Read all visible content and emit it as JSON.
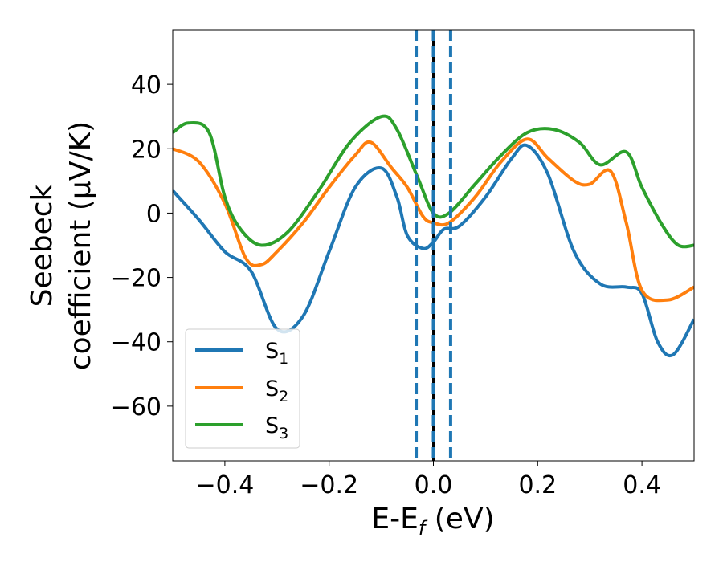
{
  "chart_data": {
    "type": "line",
    "title": "",
    "xlabel_main": "E-E",
    "xlabel_sub": "f",
    "xlabel_tail": " (eV)",
    "ylabel_line1": "Seebeck",
    "ylabel_line2": "coefficient  (μV/K)",
    "xlim": [
      -0.5,
      0.5
    ],
    "ylim": [
      -77,
      57
    ],
    "xticks": [
      -0.4,
      -0.2,
      0.0,
      0.2,
      0.4
    ],
    "xtick_labels": [
      "−0.4",
      "−0.2",
      "0.0",
      "0.2",
      "0.4"
    ],
    "yticks": [
      40,
      20,
      0,
      -20,
      -40,
      -60
    ],
    "ytick_labels": [
      "40",
      "20",
      "0",
      "−20",
      "−40",
      "−60"
    ],
    "legend_position": "lower-left",
    "vlines": [
      {
        "x": -0.033,
        "style": "dashed",
        "color": "#1f77b4"
      },
      {
        "x": 0.0,
        "style": "solid",
        "color": "#000000"
      },
      {
        "x": 0.0,
        "style": "dashed",
        "color": "#1f77b4"
      },
      {
        "x": 0.033,
        "style": "dashed",
        "color": "#1f77b4"
      }
    ],
    "series": [
      {
        "name": "S",
        "sub": "1",
        "color": "#1f77b4",
        "x": [
          -0.5,
          -0.45,
          -0.4,
          -0.35,
          -0.3,
          -0.25,
          -0.2,
          -0.15,
          -0.1,
          -0.07,
          -0.05,
          -0.02,
          0.0,
          0.02,
          0.05,
          0.1,
          0.15,
          0.18,
          0.22,
          0.27,
          0.32,
          0.37,
          0.4,
          0.43,
          0.46,
          0.5
        ],
        "y": [
          7,
          -2,
          -12,
          -18,
          -36,
          -32,
          -12,
          8,
          14,
          5,
          -7,
          -11,
          -9,
          -5,
          -4,
          5,
          17,
          21,
          12,
          -12,
          -22,
          -23,
          -25,
          -40,
          -44,
          -33
        ]
      },
      {
        "name": "S",
        "sub": "2",
        "color": "#ff7f0e",
        "x": [
          -0.5,
          -0.45,
          -0.4,
          -0.36,
          -0.33,
          -0.3,
          -0.25,
          -0.2,
          -0.15,
          -0.12,
          -0.08,
          -0.05,
          -0.02,
          0.0,
          0.03,
          0.08,
          0.13,
          0.18,
          0.22,
          0.27,
          0.3,
          0.34,
          0.37,
          0.4,
          0.45,
          0.5
        ],
        "y": [
          20,
          16,
          3,
          -14,
          -16,
          -12,
          -3,
          8,
          18,
          22,
          14,
          8,
          -1,
          -3,
          -3,
          5,
          16,
          23,
          17,
          10,
          9,
          13,
          -3,
          -24,
          -27,
          -23
        ]
      },
      {
        "name": "S",
        "sub": "3",
        "color": "#2ca02c",
        "x": [
          -0.5,
          -0.47,
          -0.43,
          -0.4,
          -0.37,
          -0.33,
          -0.28,
          -0.22,
          -0.16,
          -0.1,
          -0.07,
          -0.03,
          0.0,
          0.03,
          0.08,
          0.13,
          0.18,
          0.23,
          0.28,
          0.32,
          0.37,
          0.4,
          0.44,
          0.47,
          0.5
        ],
        "y": [
          25,
          28,
          25,
          5,
          -5,
          -10,
          -6,
          7,
          22,
          30,
          26,
          11,
          0,
          0,
          9,
          18,
          25,
          26,
          22,
          15,
          19,
          8,
          -4,
          -10,
          -10
        ]
      }
    ]
  }
}
